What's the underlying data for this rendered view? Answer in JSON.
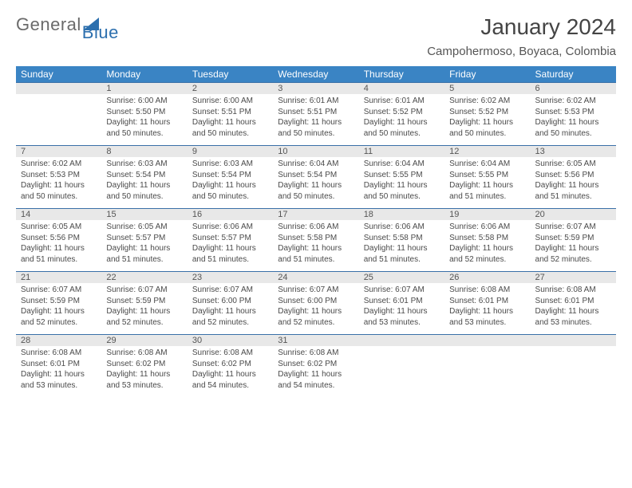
{
  "brand": {
    "word1": "General",
    "word2": "Blue",
    "color1": "#6a6a6a",
    "color2": "#2c6fae"
  },
  "title": "January 2024",
  "subtitle": "Campohermoso, Boyaca, Colombia",
  "colors": {
    "header_bg": "#3a84c4",
    "header_text": "#ffffff",
    "daynum_bg": "#e8e8e8",
    "daynum_border": "#3a70a8",
    "body_text": "#4a4a4a",
    "page_bg": "#ffffff"
  },
  "weekdays": [
    "Sunday",
    "Monday",
    "Tuesday",
    "Wednesday",
    "Thursday",
    "Friday",
    "Saturday"
  ],
  "first_weekday_offset": 1,
  "days": [
    {
      "n": 1,
      "sunrise": "6:00 AM",
      "sunset": "5:50 PM",
      "daylight": "11 hours and 50 minutes."
    },
    {
      "n": 2,
      "sunrise": "6:00 AM",
      "sunset": "5:51 PM",
      "daylight": "11 hours and 50 minutes."
    },
    {
      "n": 3,
      "sunrise": "6:01 AM",
      "sunset": "5:51 PM",
      "daylight": "11 hours and 50 minutes."
    },
    {
      "n": 4,
      "sunrise": "6:01 AM",
      "sunset": "5:52 PM",
      "daylight": "11 hours and 50 minutes."
    },
    {
      "n": 5,
      "sunrise": "6:02 AM",
      "sunset": "5:52 PM",
      "daylight": "11 hours and 50 minutes."
    },
    {
      "n": 6,
      "sunrise": "6:02 AM",
      "sunset": "5:53 PM",
      "daylight": "11 hours and 50 minutes."
    },
    {
      "n": 7,
      "sunrise": "6:02 AM",
      "sunset": "5:53 PM",
      "daylight": "11 hours and 50 minutes."
    },
    {
      "n": 8,
      "sunrise": "6:03 AM",
      "sunset": "5:54 PM",
      "daylight": "11 hours and 50 minutes."
    },
    {
      "n": 9,
      "sunrise": "6:03 AM",
      "sunset": "5:54 PM",
      "daylight": "11 hours and 50 minutes."
    },
    {
      "n": 10,
      "sunrise": "6:04 AM",
      "sunset": "5:54 PM",
      "daylight": "11 hours and 50 minutes."
    },
    {
      "n": 11,
      "sunrise": "6:04 AM",
      "sunset": "5:55 PM",
      "daylight": "11 hours and 50 minutes."
    },
    {
      "n": 12,
      "sunrise": "6:04 AM",
      "sunset": "5:55 PM",
      "daylight": "11 hours and 51 minutes."
    },
    {
      "n": 13,
      "sunrise": "6:05 AM",
      "sunset": "5:56 PM",
      "daylight": "11 hours and 51 minutes."
    },
    {
      "n": 14,
      "sunrise": "6:05 AM",
      "sunset": "5:56 PM",
      "daylight": "11 hours and 51 minutes."
    },
    {
      "n": 15,
      "sunrise": "6:05 AM",
      "sunset": "5:57 PM",
      "daylight": "11 hours and 51 minutes."
    },
    {
      "n": 16,
      "sunrise": "6:06 AM",
      "sunset": "5:57 PM",
      "daylight": "11 hours and 51 minutes."
    },
    {
      "n": 17,
      "sunrise": "6:06 AM",
      "sunset": "5:58 PM",
      "daylight": "11 hours and 51 minutes."
    },
    {
      "n": 18,
      "sunrise": "6:06 AM",
      "sunset": "5:58 PM",
      "daylight": "11 hours and 51 minutes."
    },
    {
      "n": 19,
      "sunrise": "6:06 AM",
      "sunset": "5:58 PM",
      "daylight": "11 hours and 52 minutes."
    },
    {
      "n": 20,
      "sunrise": "6:07 AM",
      "sunset": "5:59 PM",
      "daylight": "11 hours and 52 minutes."
    },
    {
      "n": 21,
      "sunrise": "6:07 AM",
      "sunset": "5:59 PM",
      "daylight": "11 hours and 52 minutes."
    },
    {
      "n": 22,
      "sunrise": "6:07 AM",
      "sunset": "5:59 PM",
      "daylight": "11 hours and 52 minutes."
    },
    {
      "n": 23,
      "sunrise": "6:07 AM",
      "sunset": "6:00 PM",
      "daylight": "11 hours and 52 minutes."
    },
    {
      "n": 24,
      "sunrise": "6:07 AM",
      "sunset": "6:00 PM",
      "daylight": "11 hours and 52 minutes."
    },
    {
      "n": 25,
      "sunrise": "6:07 AM",
      "sunset": "6:01 PM",
      "daylight": "11 hours and 53 minutes."
    },
    {
      "n": 26,
      "sunrise": "6:08 AM",
      "sunset": "6:01 PM",
      "daylight": "11 hours and 53 minutes."
    },
    {
      "n": 27,
      "sunrise": "6:08 AM",
      "sunset": "6:01 PM",
      "daylight": "11 hours and 53 minutes."
    },
    {
      "n": 28,
      "sunrise": "6:08 AM",
      "sunset": "6:01 PM",
      "daylight": "11 hours and 53 minutes."
    },
    {
      "n": 29,
      "sunrise": "6:08 AM",
      "sunset": "6:02 PM",
      "daylight": "11 hours and 53 minutes."
    },
    {
      "n": 30,
      "sunrise": "6:08 AM",
      "sunset": "6:02 PM",
      "daylight": "11 hours and 54 minutes."
    },
    {
      "n": 31,
      "sunrise": "6:08 AM",
      "sunset": "6:02 PM",
      "daylight": "11 hours and 54 minutes."
    }
  ],
  "labels": {
    "sunrise": "Sunrise:",
    "sunset": "Sunset:",
    "daylight": "Daylight:"
  }
}
